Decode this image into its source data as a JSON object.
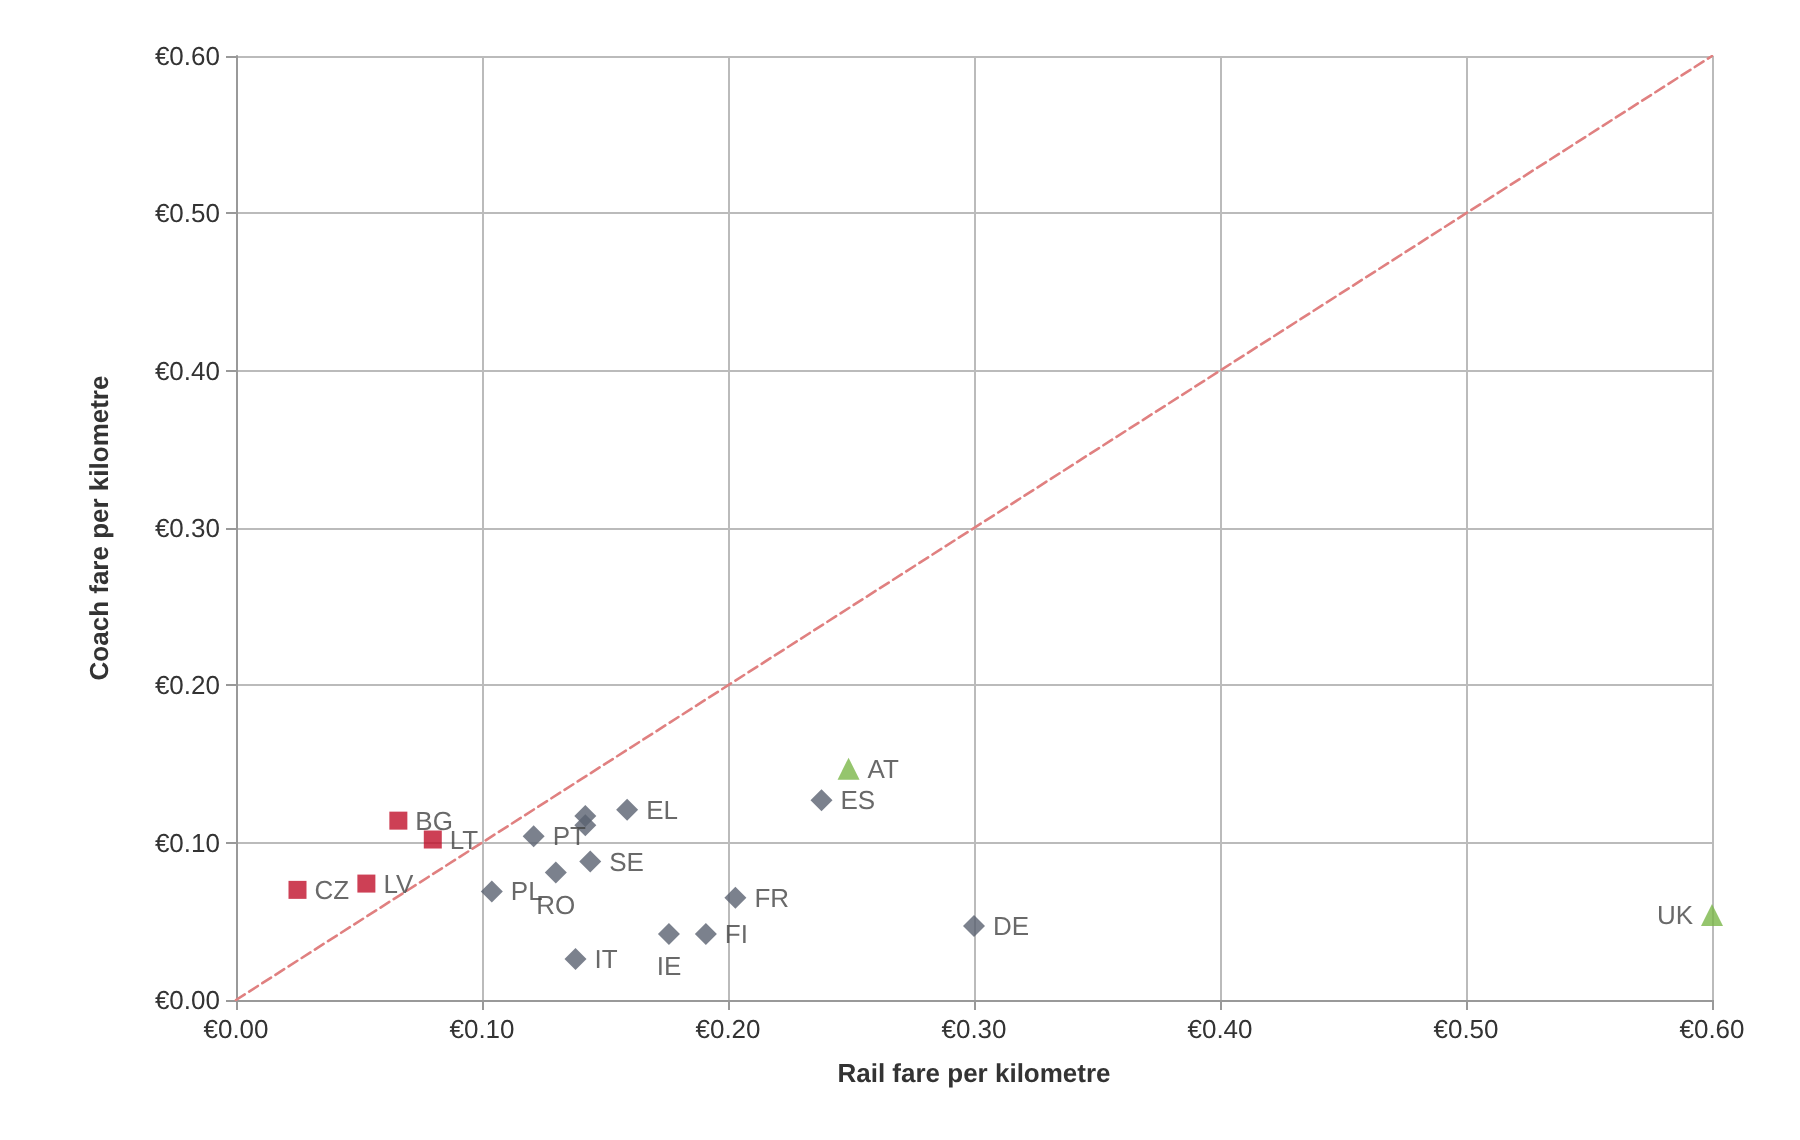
{
  "chart_data": {
    "type": "scatter",
    "xlabel": "Rail fare per kilometre",
    "ylabel": "Coach fare per kilometre",
    "xlim": [
      0,
      0.6
    ],
    "ylim": [
      0,
      0.6
    ],
    "xticks": [
      {
        "value": 0,
        "label": "€0.00"
      },
      {
        "value": 0.1,
        "label": "€0.10"
      },
      {
        "value": 0.2,
        "label": "€0.20"
      },
      {
        "value": 0.3,
        "label": "€0.30"
      },
      {
        "value": 0.4,
        "label": "€0.40"
      },
      {
        "value": 0.5,
        "label": "€0.50"
      },
      {
        "value": 0.6,
        "label": "€0.60"
      }
    ],
    "yticks": [
      {
        "value": 0,
        "label": "€0.00"
      },
      {
        "value": 0.1,
        "label": "€0.10"
      },
      {
        "value": 0.2,
        "label": "€0.20"
      },
      {
        "value": 0.3,
        "label": "€0.30"
      },
      {
        "value": 0.4,
        "label": "€0.40"
      },
      {
        "value": 0.5,
        "label": "€0.50"
      },
      {
        "value": 0.6,
        "label": "€0.60"
      }
    ],
    "grid": true,
    "series": [
      {
        "type": "line",
        "color": "#e08080",
        "line_style": "dashed",
        "marker": "none",
        "x": [
          0,
          0.6
        ],
        "values": [
          0,
          0.6
        ]
      },
      {
        "color": "#c0102a",
        "marker": "square",
        "x": [
          0.025,
          0.053,
          0.066,
          0.08
        ],
        "values": [
          0.07,
          0.074,
          0.114,
          0.102
        ],
        "value_labels": [
          "CZ",
          "LV",
          "BG",
          "LT"
        ]
      },
      {
        "color": "#5a6270",
        "marker": "diamond",
        "x": [
          0.104,
          0.121,
          0.142,
          0.142,
          0.159,
          0.13,
          0.144,
          0.138,
          0.176,
          0.191,
          0.203,
          0.238,
          0.3
        ],
        "values": [
          0.069,
          0.104,
          0.117,
          0.111,
          0.121,
          0.081,
          0.088,
          0.026,
          0.042,
          0.042,
          0.065,
          0.127,
          0.047
        ],
        "value_labels": [
          "PL",
          "PT",
          null,
          null,
          "EL",
          "RO",
          "SE",
          "IT",
          "IE",
          "FI",
          "FR",
          "ES",
          "DE"
        ]
      },
      {
        "color": "#7ab648",
        "marker": "triangle",
        "x": [
          0.249,
          0.6
        ],
        "values": [
          0.147,
          0.054
        ],
        "value_labels": [
          "AT",
          "UK"
        ]
      }
    ]
  }
}
